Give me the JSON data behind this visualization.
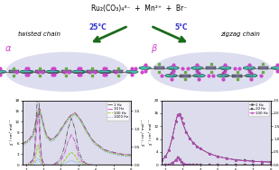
{
  "title_formula": "Ru₂(CO₃)₄³⁻  +  Mn²⁺  +  Br⁻",
  "left_label": "twisted chain",
  "right_label": "zigzag chain",
  "temp_left": "25°C",
  "temp_right": "5°C",
  "alpha_label": "α",
  "beta_label": "β",
  "bg_color": "#dddcec",
  "fig_bg": "#ffffff",
  "arrow_color": "#1a6b1a",
  "temp_color": "#3333cc",
  "chain_bg": "#d8d8ee",
  "Mn_color": "#7a7a9a",
  "Ru_color": "#40c0b0",
  "O_color": "#cc44cc",
  "Br_color": "#6aaa44",
  "C_color": "#505050",
  "bond_color": "#555555",
  "left_plot": {
    "T": [
      1.8,
      2.0,
      2.2,
      2.4,
      2.5,
      2.6,
      2.7,
      2.75,
      2.8,
      2.9,
      3.0,
      3.1,
      3.2,
      3.4,
      3.6,
      3.8,
      4.0,
      4.2,
      4.4,
      4.6,
      4.8,
      5.0,
      5.2,
      5.4,
      5.6,
      5.8,
      6.0,
      6.5,
      7.0,
      7.5,
      8.0
    ],
    "chi1": [
      5.8,
      6.5,
      7.2,
      8.5,
      10.5,
      13.0,
      15.2,
      15.8,
      15.5,
      13.5,
      11.5,
      9.5,
      8.2,
      7.2,
      7.5,
      8.5,
      10.0,
      11.5,
      13.0,
      14.0,
      14.5,
      13.5,
      12.0,
      10.2,
      8.5,
      7.0,
      6.0,
      4.2,
      3.5,
      3.0,
      2.8
    ],
    "chi10": [
      5.7,
      6.4,
      7.1,
      8.4,
      10.3,
      12.8,
      15.0,
      15.6,
      15.3,
      13.3,
      11.3,
      9.3,
      8.0,
      7.0,
      7.4,
      8.4,
      9.9,
      11.4,
      12.9,
      13.9,
      14.4,
      13.4,
      11.9,
      10.0,
      8.4,
      6.9,
      5.9,
      4.1,
      3.4,
      2.9,
      2.7
    ],
    "chi100": [
      5.5,
      6.2,
      6.9,
      8.1,
      10.0,
      12.4,
      14.6,
      15.2,
      15.0,
      13.0,
      11.0,
      9.0,
      7.8,
      6.8,
      7.2,
      8.2,
      9.7,
      11.2,
      12.7,
      13.7,
      14.2,
      13.2,
      11.7,
      9.8,
      8.2,
      6.7,
      5.7,
      3.9,
      3.2,
      2.7,
      2.5
    ],
    "chi1000": [
      5.2,
      5.9,
      6.6,
      7.8,
      9.6,
      11.8,
      14.0,
      14.6,
      14.4,
      12.5,
      10.6,
      8.7,
      7.5,
      6.5,
      6.9,
      7.9,
      9.4,
      10.9,
      12.4,
      13.4,
      13.9,
      12.9,
      11.4,
      9.5,
      7.9,
      6.4,
      5.4,
      3.7,
      3.0,
      2.5,
      2.3
    ],
    "chipp1": [
      0.0,
      0.0,
      0.05,
      0.15,
      0.4,
      1.4,
      2.2,
      1.8,
      0.9,
      0.2,
      0.05,
      0.02,
      0.0,
      0.0,
      0.02,
      0.08,
      0.2,
      0.5,
      1.0,
      1.3,
      1.0,
      0.4,
      0.15,
      0.05,
      0.02,
      0.0,
      0.0,
      0.0,
      0.0,
      0.0,
      0.0
    ],
    "chipp10": [
      0.0,
      0.0,
      0.03,
      0.1,
      0.25,
      0.9,
      1.4,
      1.2,
      0.6,
      0.12,
      0.03,
      0.01,
      0.0,
      0.0,
      0.01,
      0.04,
      0.12,
      0.3,
      0.65,
      0.85,
      0.65,
      0.25,
      0.09,
      0.03,
      0.01,
      0.0,
      0.0,
      0.0,
      0.0,
      0.0,
      0.0
    ],
    "chipp100": [
      0.0,
      0.0,
      0.01,
      0.04,
      0.1,
      0.35,
      0.55,
      0.48,
      0.24,
      0.05,
      0.01,
      0.0,
      0.0,
      0.0,
      0.0,
      0.01,
      0.04,
      0.12,
      0.27,
      0.35,
      0.27,
      0.1,
      0.04,
      0.01,
      0.0,
      0.0,
      0.0,
      0.0,
      0.0,
      0.0,
      0.0
    ],
    "chipp1000": [
      0.0,
      0.0,
      0.0,
      0.01,
      0.03,
      0.1,
      0.18,
      0.15,
      0.08,
      0.02,
      0.0,
      0.0,
      0.0,
      0.0,
      0.0,
      0.0,
      0.01,
      0.04,
      0.09,
      0.12,
      0.09,
      0.03,
      0.01,
      0.0,
      0.0,
      0.0,
      0.0,
      0.0,
      0.0,
      0.0,
      0.0
    ],
    "colors": [
      "#555555",
      "#cc44cc",
      "#88cc00",
      "#4499dd"
    ],
    "labels": [
      "1 Hz",
      "10 Hz",
      "100 Hz",
      "1000 Hz"
    ],
    "xlim": [
      1.8,
      8.0
    ],
    "ylim_l": [
      0,
      18
    ],
    "ylim_r": [
      0,
      1.8
    ],
    "yticks_l": [
      0,
      3,
      6,
      9,
      12,
      15,
      18
    ],
    "yticks_r": [
      0.0,
      0.5,
      1.0,
      1.5
    ],
    "xticks": [
      2,
      3,
      4,
      5,
      6,
      7,
      8
    ]
  },
  "right_plot": {
    "T": [
      1.8,
      2.0,
      2.2,
      2.4,
      2.6,
      2.7,
      2.8,
      2.9,
      3.0,
      3.2,
      3.4,
      3.6,
      3.8,
      4.0,
      4.5,
      5.0,
      5.5,
      6.0,
      6.5,
      7.0,
      7.5,
      8.0
    ],
    "chi5": [
      1.5,
      2.5,
      4.5,
      8.5,
      13.5,
      15.5,
      15.8,
      14.5,
      12.8,
      10.0,
      8.2,
      6.8,
      5.8,
      5.0,
      3.5,
      2.6,
      2.0,
      1.6,
      1.35,
      1.15,
      1.0,
      0.9
    ],
    "chi10": [
      1.5,
      2.5,
      4.5,
      8.5,
      13.5,
      15.5,
      15.8,
      14.5,
      12.8,
      10.0,
      8.2,
      6.8,
      5.8,
      5.0,
      3.5,
      2.6,
      2.0,
      1.6,
      1.35,
      1.15,
      1.0,
      0.9
    ],
    "chi100": [
      1.5,
      2.5,
      4.5,
      8.5,
      13.5,
      15.5,
      15.8,
      14.5,
      12.8,
      10.0,
      8.2,
      6.8,
      5.8,
      5.0,
      3.5,
      2.6,
      2.0,
      1.6,
      1.35,
      1.15,
      1.0,
      0.9
    ],
    "chipp5": [
      0.0,
      0.0,
      0.01,
      0.08,
      0.18,
      0.28,
      0.22,
      0.12,
      0.06,
      0.02,
      0.01,
      0.0,
      0.0,
      0.0,
      0.0,
      0.0,
      0.0,
      0.0,
      0.0,
      0.0,
      0.0,
      0.0
    ],
    "chipp10": [
      0.0,
      0.0,
      0.01,
      0.08,
      0.18,
      0.28,
      0.22,
      0.12,
      0.06,
      0.02,
      0.01,
      0.0,
      0.0,
      0.0,
      0.0,
      0.0,
      0.0,
      0.0,
      0.0,
      0.0,
      0.0,
      0.0
    ],
    "chipp100": [
      0.0,
      0.0,
      0.01,
      0.08,
      0.18,
      0.28,
      0.22,
      0.12,
      0.06,
      0.02,
      0.01,
      0.0,
      0.0,
      0.0,
      0.0,
      0.0,
      0.0,
      0.0,
      0.0,
      0.0,
      0.0,
      0.0
    ],
    "colors": [
      "#555555",
      "#555555",
      "#cc44cc"
    ],
    "labels": [
      "1 Hz",
      "10 Hz",
      "100 Hz"
    ],
    "markers": [
      "o",
      "s",
      "^"
    ],
    "xlim": [
      1.8,
      8.0
    ],
    "ylim_l": [
      0,
      20
    ],
    "ylim_r": [
      0,
      2.5
    ],
    "yticks_l": [
      0,
      4,
      8,
      12,
      16,
      20
    ],
    "yticks_r": [
      0.0,
      0.5,
      1.0,
      1.5,
      2.0,
      2.5
    ],
    "xticks": [
      2,
      3,
      4,
      5,
      6,
      7,
      8
    ]
  }
}
